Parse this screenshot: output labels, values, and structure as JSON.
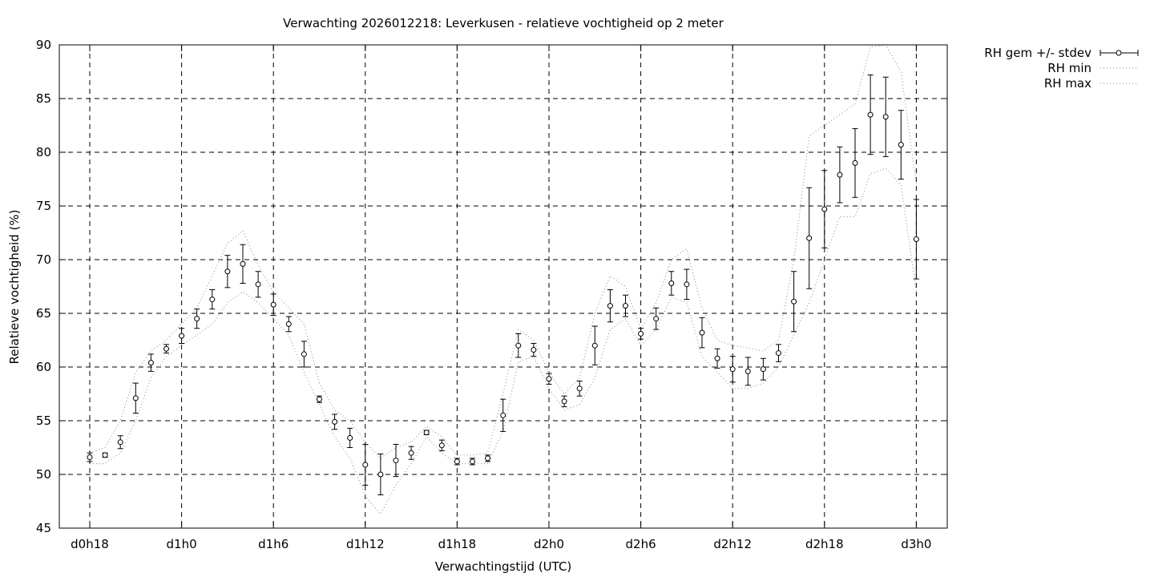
{
  "chart_data": {
    "type": "line",
    "title": "Verwachting 2026012218: Leverkusen - relatieve vochtigheid op 2 meter",
    "xlabel": "Verwachtingstijd (UTC)",
    "ylabel": "Relatieve vochtigheid (%)",
    "x_unit": "hours since d0h18",
    "xlim": [
      -1,
      55
    ],
    "ylim": [
      45,
      90
    ],
    "yticks": [
      45,
      50,
      55,
      60,
      65,
      70,
      75,
      80,
      85,
      90
    ],
    "xticks": [
      {
        "x": 0,
        "label": "d0h18"
      },
      {
        "x": 6,
        "label": "d1h0"
      },
      {
        "x": 12,
        "label": "d1h6"
      },
      {
        "x": 18,
        "label": "d1h12"
      },
      {
        "x": 24,
        "label": "d1h18"
      },
      {
        "x": 30,
        "label": "d2h0"
      },
      {
        "x": 36,
        "label": "d2h6"
      },
      {
        "x": 42,
        "label": "d2h12"
      },
      {
        "x": 48,
        "label": "d2h18"
      },
      {
        "x": 54,
        "label": "d3h0"
      }
    ],
    "grid": true,
    "legend_position": "outside-top-right",
    "series": [
      {
        "name": "RH gem +/- stdev",
        "style": "points-errorbars",
        "x": [
          0,
          1,
          2,
          3,
          4,
          5,
          6,
          7,
          8,
          9,
          10,
          11,
          12,
          13,
          14,
          15,
          16,
          17,
          18,
          19,
          20,
          21,
          22,
          23,
          24,
          25,
          26,
          27,
          28,
          29,
          30,
          31,
          32,
          33,
          34,
          35,
          36,
          37,
          38,
          39,
          40,
          41,
          42,
          43,
          44,
          45,
          46,
          47,
          48,
          49,
          50,
          51,
          52,
          53,
          54
        ],
        "values": [
          51.6,
          51.8,
          53.0,
          57.1,
          60.4,
          61.7,
          62.9,
          64.5,
          66.3,
          68.9,
          69.6,
          67.7,
          65.8,
          64.0,
          61.2,
          57.0,
          54.9,
          53.4,
          50.9,
          50.0,
          51.3,
          52.0,
          53.9,
          52.7,
          51.2,
          51.2,
          51.5,
          55.5,
          62.0,
          61.6,
          58.9,
          56.8,
          58.0,
          62.0,
          65.7,
          65.7,
          63.1,
          64.5,
          67.8,
          67.7,
          63.2,
          60.8,
          59.8,
          59.6,
          59.8,
          61.3,
          66.1,
          72.0,
          74.7,
          77.9,
          79.0,
          83.5,
          83.3,
          80.7,
          71.9
        ],
        "stdev": [
          0.4,
          0.2,
          0.6,
          1.4,
          0.8,
          0.4,
          0.7,
          0.9,
          0.9,
          1.5,
          1.8,
          1.2,
          1.0,
          0.7,
          1.2,
          0.3,
          0.7,
          0.9,
          1.9,
          1.9,
          1.5,
          0.6,
          0.2,
          0.5,
          0.3,
          0.3,
          0.3,
          1.5,
          1.1,
          0.6,
          0.5,
          0.5,
          0.7,
          1.8,
          1.5,
          1.0,
          0.5,
          1.0,
          1.1,
          1.4,
          1.4,
          0.9,
          1.2,
          1.3,
          1.0,
          0.8,
          2.8,
          4.7,
          3.6,
          2.6,
          3.2,
          3.7,
          3.7,
          3.2,
          3.7
        ]
      },
      {
        "name": "RH min",
        "style": "dotted",
        "x": [
          0,
          1,
          2,
          3,
          4,
          5,
          6,
          7,
          8,
          9,
          10,
          11,
          12,
          13,
          14,
          15,
          16,
          17,
          18,
          19,
          20,
          21,
          22,
          23,
          24,
          25,
          26,
          27,
          28,
          29,
          30,
          31,
          32,
          33,
          34,
          35,
          36,
          37,
          38,
          39,
          40,
          41,
          42,
          43,
          44,
          45,
          46,
          47,
          48,
          49,
          50,
          51,
          52,
          53,
          54
        ],
        "values": [
          51.0,
          51.0,
          52.0,
          55.0,
          59.0,
          61.0,
          62.0,
          63.0,
          64.0,
          66.0,
          67.0,
          66.0,
          64.5,
          63.0,
          59.5,
          56.5,
          53.5,
          51.5,
          48.0,
          46.3,
          49.0,
          51.0,
          53.5,
          52.0,
          51.0,
          51.0,
          51.0,
          54.0,
          60.5,
          61.0,
          58.0,
          56.0,
          56.5,
          59.0,
          63.5,
          64.5,
          62.0,
          63.5,
          66.5,
          66.0,
          61.0,
          59.5,
          58.0,
          58.0,
          58.5,
          60.0,
          63.0,
          66.0,
          70.0,
          74.0,
          74.0,
          78.0,
          78.5,
          77.0,
          67.0
        ]
      },
      {
        "name": "RH max",
        "style": "dotted",
        "x": [
          0,
          1,
          2,
          3,
          4,
          5,
          6,
          7,
          8,
          9,
          10,
          11,
          12,
          13,
          14,
          15,
          16,
          17,
          18,
          19,
          20,
          21,
          22,
          23,
          24,
          25,
          26,
          27,
          28,
          29,
          30,
          31,
          32,
          33,
          34,
          35,
          36,
          37,
          38,
          39,
          40,
          41,
          42,
          43,
          44,
          45,
          46,
          47,
          48,
          49,
          50,
          51,
          52,
          53,
          54
        ],
        "values": [
          52.0,
          52.5,
          55.0,
          59.5,
          61.5,
          62.5,
          64.0,
          65.5,
          68.5,
          71.5,
          72.7,
          69.5,
          67.0,
          65.5,
          64.0,
          58.5,
          56.0,
          55.0,
          53.0,
          51.5,
          52.5,
          53.0,
          54.5,
          53.5,
          51.8,
          51.8,
          52.0,
          57.5,
          63.5,
          62.5,
          59.5,
          57.5,
          59.0,
          65.0,
          68.5,
          67.5,
          63.5,
          66.0,
          70.0,
          71.0,
          65.5,
          62.5,
          62.0,
          61.8,
          61.5,
          62.5,
          70.0,
          81.5,
          82.5,
          83.5,
          84.5,
          89.8,
          90.0,
          87.5,
          77.0
        ]
      }
    ]
  }
}
